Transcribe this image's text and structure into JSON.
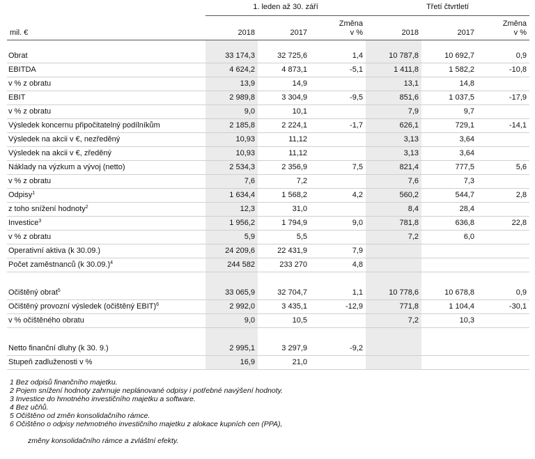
{
  "header": {
    "groups": [
      "1. leden až 30. září",
      "Třetí čtvrtletí"
    ],
    "unit": "mil. €",
    "columns": [
      "2018",
      "2017",
      "Změna\nv %",
      "2018",
      "2017",
      "Změna\nv %"
    ]
  },
  "groups": [
    {
      "rows": [
        {
          "label": "Obrat",
          "cells": [
            "33 174,3",
            "32 725,6",
            "1,4",
            "10 787,8",
            "10 692,7",
            "0,9"
          ]
        },
        {
          "label": "EBITDA",
          "cells": [
            "4 624,2",
            "4 873,1",
            "-5,1",
            "1 411,8",
            "1 582,2",
            "-10,8"
          ]
        },
        {
          "label": "v % z obratu",
          "cells": [
            "13,9",
            "14,9",
            null,
            "13,1",
            "14,8",
            null
          ]
        },
        {
          "label": "EBIT",
          "cells": [
            "2 989,8",
            "3 304,9",
            "-9,5",
            "851,6",
            "1 037,5",
            "-17,9"
          ]
        },
        {
          "label": "v % z obratu",
          "cells": [
            "9,0",
            "10,1",
            null,
            "7,9",
            "9,7",
            null
          ]
        },
        {
          "label": "Výsledek koncernu připočitatelný podílníkům",
          "cells": [
            "2 185,8",
            "2 224,1",
            "-1,7",
            "626,1",
            "729,1",
            "-14,1"
          ]
        },
        {
          "label": "Výsledek na akcii v €, nezředěný",
          "cells": [
            "10,93",
            "11,12",
            null,
            "3,13",
            "3,64",
            null
          ]
        },
        {
          "label": "Výsledek na akcii v €, zředěný",
          "cells": [
            "10,93",
            "11,12",
            null,
            "3,13",
            "3,64",
            null
          ]
        },
        {
          "label": "Náklady na výzkum a vývoj (netto)",
          "cells": [
            "2 534,3",
            "2 356,9",
            "7,5",
            "821,4",
            "777,5",
            "5,6"
          ]
        },
        {
          "label": "v % z obratu",
          "cells": [
            "7,6",
            "7,2",
            null,
            "7,6",
            "7,3",
            null
          ]
        },
        {
          "label": "Odpisy",
          "note": "1",
          "cells": [
            "1 634,4",
            "1 568,2",
            "4,2",
            "560,2",
            "544,7",
            "2,8"
          ]
        },
        {
          "label": "z toho snížení hodnoty",
          "note": "2",
          "cells": [
            "12,3",
            "31,0",
            null,
            "8,4",
            "28,4",
            null
          ]
        },
        {
          "label": "Investice",
          "note": "3",
          "cells": [
            "1 956,2",
            "1 794,9",
            "9,0",
            "781,8",
            "636,8",
            "22,8"
          ]
        },
        {
          "label": "v % z obratu",
          "cells": [
            "5,9",
            "5,5",
            null,
            "7,2",
            "6,0",
            null
          ]
        },
        {
          "label": "Operativní aktiva (k 30.09.)",
          "cells": [
            "24 209,6",
            "22 431,9",
            "7,9",
            null,
            null,
            null
          ]
        },
        {
          "label": "Počet zaměstnanců (k 30.09.)",
          "note": "4",
          "cells": [
            "244 582",
            "233 270",
            "4,8",
            null,
            null,
            null
          ]
        }
      ]
    },
    {
      "rows": [
        {
          "label": "Očištěný obrat",
          "note": "5",
          "cells": [
            "33 065,9",
            "32 704,7",
            "1,1",
            "10 778,6",
            "10 678,8",
            "0,9"
          ]
        },
        {
          "label": "Očištěný provozní výsledek (očištěný EBIT)",
          "note": "6",
          "cells": [
            "2 992,0",
            "3 435,1",
            "-12,9",
            "771,8",
            "1 104,4",
            "-30,1"
          ]
        },
        {
          "label": "v % očištěného obratu",
          "cells": [
            "9,0",
            "10,5",
            null,
            "7,2",
            "10,3",
            null
          ]
        }
      ]
    },
    {
      "rows": [
        {
          "label": "Netto finanční dluhy (k 30. 9.)",
          "cells": [
            "2 995,1",
            "3 297,9",
            "-9,2",
            null,
            null,
            null
          ]
        },
        {
          "label": "Stupeň zadluženosti v %",
          "cells": [
            "16,9",
            "21,0",
            null,
            null,
            null,
            null
          ]
        }
      ]
    }
  ],
  "footnotes": [
    "1 Bez odpisů finančního majetku.",
    "2 Pojem snížení hodnoty zahrnuje neplánované odpisy i potřebné navýšení hodnoty.",
    "3 Investice do hmotného investičního majetku a software.",
    "4 Bez učňů.",
    "5 Očištěno od změn konsolidačního rámce.",
    "6 Očištěno o odpisy nehmotného investičního majetku z alokace kupních cen (PPA),"
  ],
  "footnote_continuation": "změny konsolidačního rámce a zvláštní efekty."
}
